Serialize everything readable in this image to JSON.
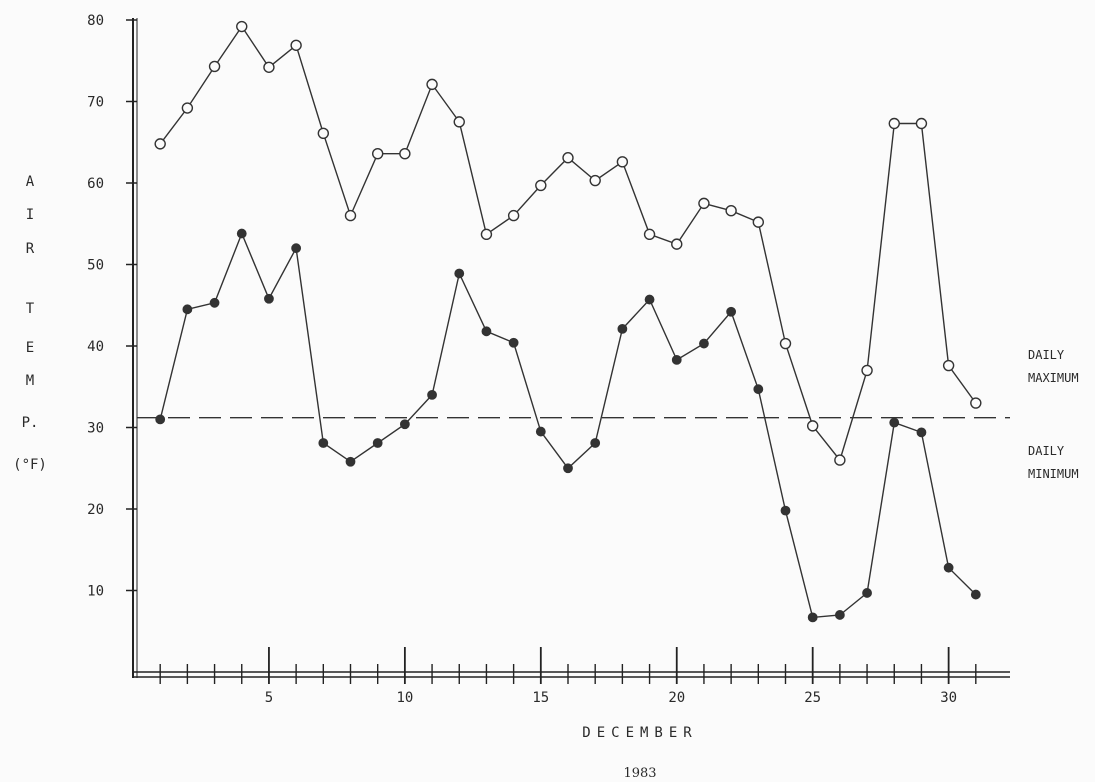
{
  "chart_data": {
    "type": "line",
    "title": "",
    "xlabel": "DECEMBER",
    "subtitle": "1983",
    "ylabel_letters": [
      "A",
      "I",
      "R",
      "T",
      "E",
      "M",
      "P.",
      "(°F)"
    ],
    "xlim": [
      0,
      32
    ],
    "ylim": [
      0,
      80
    ],
    "x_ticks": [
      5,
      10,
      15,
      20,
      25,
      30
    ],
    "y_ticks": [
      10,
      20,
      30,
      40,
      50,
      60,
      70,
      80
    ],
    "reference_line": {
      "y": 31.2,
      "style": "dashed"
    },
    "x": [
      1,
      2,
      3,
      4,
      5,
      6,
      7,
      8,
      9,
      10,
      11,
      12,
      13,
      14,
      15,
      16,
      17,
      18,
      19,
      20,
      21,
      22,
      23,
      24,
      25,
      26,
      27,
      28,
      29,
      30,
      31
    ],
    "series": [
      {
        "name": "DAILY MAXIMUM",
        "marker": "open-circle",
        "values": [
          64.8,
          69.2,
          74.3,
          79.2,
          74.2,
          76.9,
          66.1,
          56.0,
          63.6,
          63.6,
          72.1,
          67.5,
          53.7,
          56.0,
          59.7,
          63.1,
          60.3,
          62.6,
          53.7,
          52.5,
          57.5,
          56.6,
          55.2,
          40.3,
          30.2,
          26.0,
          37.0,
          67.3,
          67.3,
          37.6,
          33.0
        ]
      },
      {
        "name": "DAILY MINIMUM",
        "marker": "filled-circle",
        "values": [
          31.0,
          44.5,
          45.3,
          53.8,
          45.8,
          52.0,
          28.1,
          25.8,
          28.1,
          30.4,
          34.0,
          48.9,
          41.8,
          40.4,
          29.5,
          25.0,
          28.1,
          42.1,
          45.7,
          38.3,
          40.3,
          44.2,
          34.7,
          19.8,
          6.7,
          7.0,
          9.7,
          30.6,
          29.4,
          12.8,
          9.5
        ]
      }
    ],
    "legend": [
      {
        "line1": "DAILY",
        "line2": "MAXIMUM"
      },
      {
        "line1": "DAILY",
        "line2": "MINIMUM"
      }
    ],
    "grid": false
  }
}
